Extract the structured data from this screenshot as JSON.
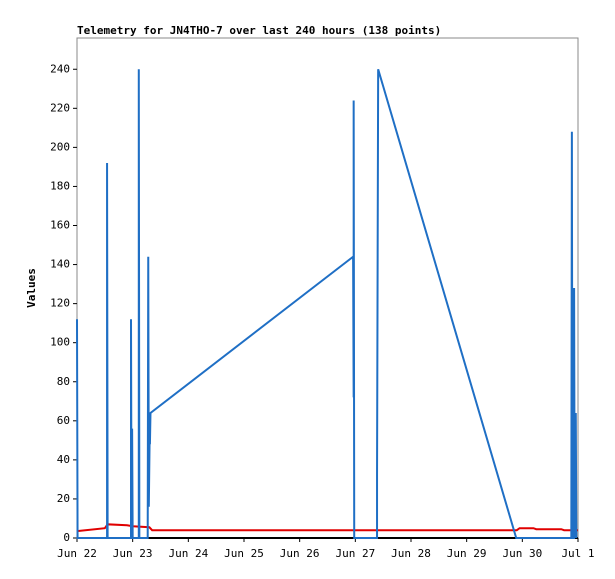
{
  "chart_data": {
    "type": "line",
    "title": "Telemetry for JN4THO-7 over last 240 hours (138 points)",
    "y_label": "Values",
    "xlim": [
      0,
      9
    ],
    "xticks": [
      {
        "value": 0,
        "label": "Jun 22"
      },
      {
        "value": 1,
        "label": "Jun 23"
      },
      {
        "value": 2,
        "label": "Jun 24"
      },
      {
        "value": 3,
        "label": "Jun 25"
      },
      {
        "value": 4,
        "label": "Jun 26"
      },
      {
        "value": 5,
        "label": "Jun 27"
      },
      {
        "value": 6,
        "label": "Jun 28"
      },
      {
        "value": 7,
        "label": "Jun 29"
      },
      {
        "value": 8,
        "label": "Jun 30"
      },
      {
        "value": 9,
        "label": "Jul 1"
      }
    ],
    "ylim": [
      0,
      256
    ],
    "yticks": [
      0,
      20,
      40,
      60,
      80,
      100,
      120,
      140,
      160,
      180,
      200,
      220,
      240
    ],
    "grid": false,
    "series": [
      {
        "color": "#1f6fc5",
        "x": [
          0,
          0.01,
          0.54,
          0.54,
          0.55,
          0.97,
          0.97,
          0.98,
          0.99,
          1.0,
          1.11,
          1.11,
          1.12,
          1.27,
          1.28,
          1.29,
          1.31,
          1.31,
          1.32,
          4.96,
          4.97,
          4.97,
          4.98,
          5.39,
          5.39,
          5.41,
          7.89,
          8.88,
          8.89,
          8.9,
          8.93,
          8.93,
          8.94,
          8.96,
          8.97
        ],
        "values": [
          112,
          0,
          0,
          192,
          0,
          0,
          112,
          0,
          56,
          0,
          0,
          240,
          0,
          0,
          144,
          16,
          64,
          48,
          64,
          144,
          72,
          224,
          0,
          0,
          32,
          240,
          0,
          0,
          208,
          0,
          0,
          128,
          0,
          64,
          0
        ]
      },
      {
        "color": "#e00000",
        "x": [
          0,
          0.5,
          0.55,
          0.9,
          1.0,
          1.3,
          1.35,
          7.9,
          7.95,
          8.2,
          8.25,
          8.7,
          8.75,
          9.0
        ],
        "values": [
          3.5,
          5,
          7,
          6.5,
          6,
          5.5,
          4,
          4,
          5,
          5,
          4.5,
          4.5,
          4,
          4
        ]
      }
    ]
  }
}
